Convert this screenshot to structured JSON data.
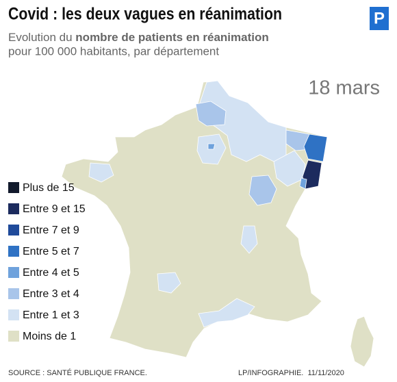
{
  "header": {
    "title": "Covid : les deux vagues en réanimation",
    "subtitle_start": "Evolution du ",
    "subtitle_bold": "nombre de patients en réanimation",
    "subtitle_line2": "pour 100 000 habitants, par département",
    "logo": "P"
  },
  "date": "18 mars",
  "legend": {
    "items": [
      {
        "label": "Plus de 15",
        "color": "#121a2c"
      },
      {
        "label": "Entre 9 et 15",
        "color": "#1c2b5e"
      },
      {
        "label": "Entre 7 et 9",
        "color": "#1f4a9a"
      },
      {
        "label": "Entre 5 et 7",
        "color": "#2f72c4"
      },
      {
        "label": "Entre 4 et 5",
        "color": "#6fa2dc"
      },
      {
        "label": "Entre 3 et 4",
        "color": "#a9c5ea"
      },
      {
        "label": "Entre 1 et 3",
        "color": "#d3e2f3"
      },
      {
        "label": "Moins de 1",
        "color": "#dfe0c6"
      }
    ]
  },
  "footer": {
    "source": "SOURCE : SANTÉ PUBLIQUE FRANCE.",
    "credit": "LP/INFOGRAPHIE.  11/11/2020"
  }
}
